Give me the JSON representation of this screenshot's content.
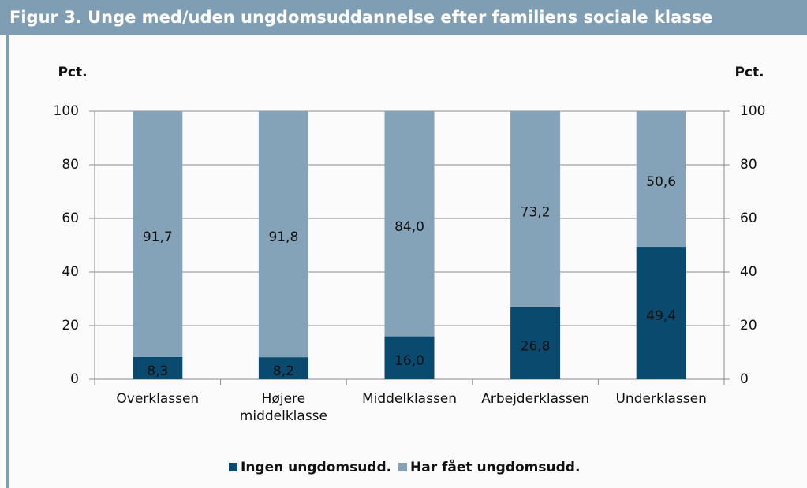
{
  "chart_data": {
    "type": "stacked_bar",
    "title": "Figur 3. Unge med/uden ungdomsuddannelse efter familiens sociale klasse",
    "y_label": "Pct.",
    "y2_label": "Pct.",
    "categories": [
      "Overklassen",
      "Højere middelklasse",
      "Middelklassen",
      "Arbejderklassen",
      "Underklassen"
    ],
    "series": [
      {
        "name": "Ingen ungdomsudd.",
        "color": "#0b4a6f",
        "values": [
          8.3,
          8.2,
          16.0,
          26.8,
          49.4
        ],
        "value_labels": [
          "8,3",
          "8,2",
          "16,0",
          "26,8",
          "49,4"
        ]
      },
      {
        "name": "Har fået ungdomsudd.",
        "color": "#84a2b8",
        "values": [
          91.7,
          91.8,
          84.0,
          73.2,
          50.6
        ],
        "value_labels": [
          "91,7",
          "91,8",
          "84,0",
          "73,2",
          "50,6"
        ]
      }
    ],
    "ylim": [
      0,
      100
    ],
    "yticks": [
      0,
      20,
      40,
      60,
      80,
      100
    ],
    "y2lim": [
      0,
      100
    ],
    "y2ticks": [
      0,
      20,
      40,
      60,
      80,
      100
    ],
    "grid": true
  }
}
